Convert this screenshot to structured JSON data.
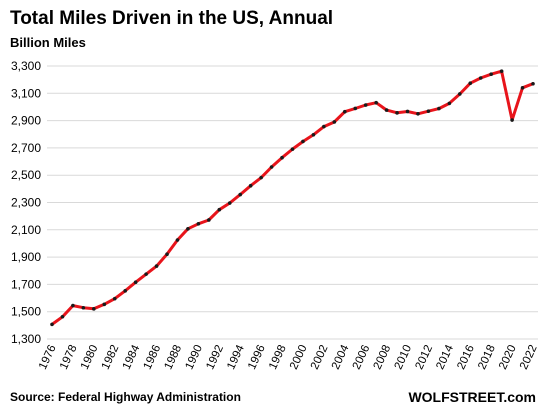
{
  "chart_data": {
    "type": "line",
    "title": "Total Miles Driven in the US, Annual",
    "subtitle": "Billion Miles",
    "ylim": [
      1300,
      3300
    ],
    "yticks": [
      1300,
      1500,
      1700,
      1900,
      2100,
      2300,
      2500,
      2700,
      2900,
      3100,
      3300
    ],
    "ytick_labels": [
      "1,300",
      "1,500",
      "1,700",
      "1,900",
      "2,100",
      "2,300",
      "2,500",
      "2,700",
      "2,900",
      "3,100",
      "3,300"
    ],
    "xlim": [
      1976,
      2022
    ],
    "xticks": [
      1976,
      1978,
      1980,
      1982,
      1984,
      1986,
      1988,
      1990,
      1992,
      1994,
      1996,
      1998,
      2000,
      2002,
      2004,
      2006,
      2008,
      2010,
      2012,
      2014,
      2016,
      2018,
      2020,
      2022
    ],
    "grid": true,
    "series": [
      {
        "color": "#e8141b",
        "marker_color": "#1a1a1a",
        "x": [
          1976,
          1977,
          1978,
          1979,
          1980,
          1981,
          1982,
          1983,
          1984,
          1985,
          1986,
          1987,
          1988,
          1989,
          1990,
          1991,
          1992,
          1993,
          1994,
          1995,
          1996,
          1997,
          1998,
          1999,
          2000,
          2001,
          2002,
          2003,
          2004,
          2005,
          2006,
          2007,
          2008,
          2009,
          2010,
          2011,
          2012,
          2013,
          2014,
          2015,
          2016,
          2017,
          2018,
          2019,
          2020,
          2021,
          2022
        ],
        "values": [
          1407,
          1463,
          1545,
          1529,
          1521,
          1554,
          1595,
          1653,
          1716,
          1775,
          1834,
          1921,
          2025,
          2107,
          2144,
          2172,
          2247,
          2296,
          2358,
          2423,
          2482,
          2560,
          2628,
          2691,
          2747,
          2796,
          2856,
          2890,
          2965,
          2989,
          3014,
          3031,
          2977,
          2957,
          2967,
          2950,
          2969,
          2988,
          3026,
          3095,
          3174,
          3212,
          3240,
          3262,
          2904,
          3140,
          3170
        ]
      }
    ]
  },
  "source_text": "Source: Federal Highway Administration",
  "brand_text": "WOLFSTREET.com"
}
